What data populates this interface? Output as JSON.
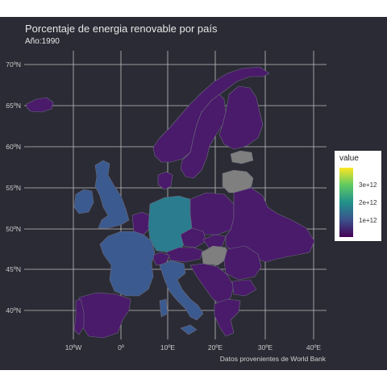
{
  "title": "Porcentaje de energia renovable por país",
  "subtitle": "Año:1990",
  "caption": "Datos provenientes de World Bank",
  "lat_labels": [
    "70ºN",
    "65ºN",
    "60ºN",
    "55ºN",
    "50ºN",
    "45ºN",
    "40ºN"
  ],
  "lon_labels": [
    "10ºW",
    "0º",
    "10ºE",
    "20ºE",
    "30ºE",
    "40ºE"
  ],
  "legend": {
    "title": "value",
    "labels": [
      "3e+12",
      "2e+12",
      "1e+12"
    ],
    "colors": [
      "#440154",
      "#3b528b",
      "#21918c",
      "#5ec962",
      "#fde725"
    ]
  },
  "colors": {
    "background": "#2b2b35",
    "gridline": "#d8d8d8",
    "low": "#4a1a6b",
    "mid_low": "#3b5a8f",
    "mid": "#2a7c8e",
    "no_data": "#7f7f7f",
    "border": "#6a6a7a"
  }
}
